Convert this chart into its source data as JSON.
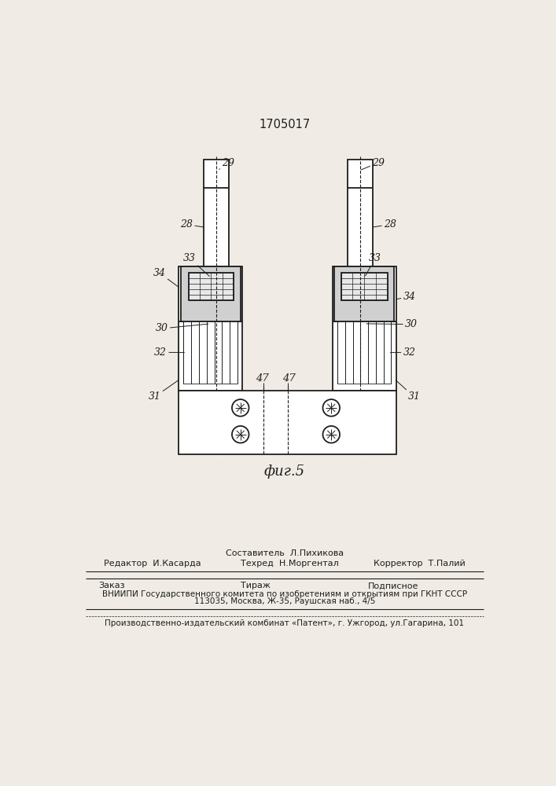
{
  "title": "1705017",
  "fig_label": "фиг.5",
  "bg": "#f0ece5",
  "lc": "#1e1e1e",
  "footer": {
    "sostavitel": "Составитель  Л.Пихикова",
    "redaktor": "Редактор  И.Касарда",
    "tehred": "Техред  Н.Моргентал",
    "korrektor": "Корректор  Т.Палий",
    "zakaz": "Заказ",
    "tirazh": "Тираж",
    "podpisnoe": "Подписное",
    "vniip1": "ВНИИПИ Государственного комитета по изобретениям и открытиям при ГКНТ СССР",
    "vniip2": "113035, Москва, Ж-35, Раушская наб., 4/5",
    "proizv": "Производственно-издательский комбинат «Патент», г. Ужгород, ул.Гагарина, 101"
  }
}
